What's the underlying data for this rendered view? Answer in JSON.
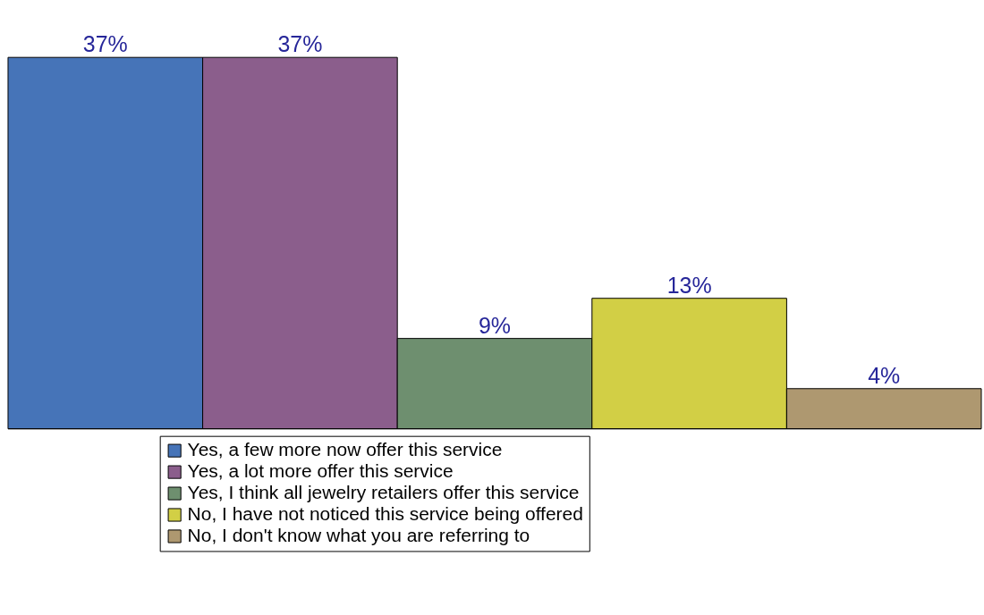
{
  "chart_data": {
    "type": "bar",
    "categories": [
      null,
      null,
      null,
      null,
      null
    ],
    "stacked": true,
    "series": [
      {
        "name": "Yes, a few more now offer this service",
        "color": "#4674b8",
        "values": [
          37,
          null,
          null,
          null,
          null
        ],
        "value_labels": [
          "37%",
          null,
          null,
          null,
          null
        ]
      },
      {
        "name": "Yes, a lot more offer this service",
        "color": "#8b5e8c",
        "values": [
          null,
          37,
          null,
          null,
          null
        ],
        "value_labels": [
          null,
          "37%",
          null,
          null,
          null
        ]
      },
      {
        "name": "Yes, I think all jewelry retailers offer this service",
        "color": "#6e8f6f",
        "values": [
          null,
          null,
          9,
          null,
          null
        ],
        "value_labels": [
          null,
          null,
          "9%",
          null,
          null
        ]
      },
      {
        "name": "No, I have not noticed this service being offered",
        "color": "#d2cf45",
        "values": [
          null,
          null,
          null,
          13,
          null
        ],
        "value_labels": [
          null,
          null,
          null,
          "13%",
          null
        ]
      },
      {
        "name": "No, I don't know what you are referring to",
        "color": "#ae9870",
        "values": [
          null,
          null,
          null,
          null,
          4
        ],
        "value_labels": [
          null,
          null,
          null,
          null,
          "4%"
        ]
      }
    ],
    "legend": "bottom",
    "grid": false
  }
}
